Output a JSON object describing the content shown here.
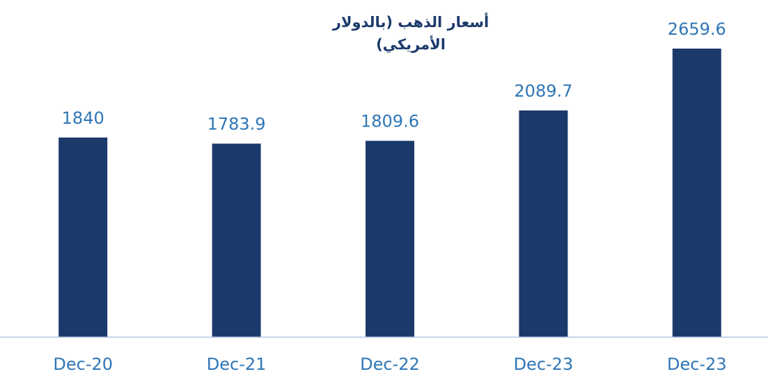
{
  "chart_data": {
    "type": "bar",
    "title": "أسعار الذهب (بالدولار الأمريكي)",
    "categories": [
      "Dec-20",
      "Dec-21",
      "Dec-22",
      "Dec-23",
      "Dec-23"
    ],
    "values": [
      1840,
      1783.9,
      1809.6,
      2089.7,
      2659.6
    ],
    "color": "#1b3a6b",
    "ylim": [
      0,
      2800
    ]
  }
}
